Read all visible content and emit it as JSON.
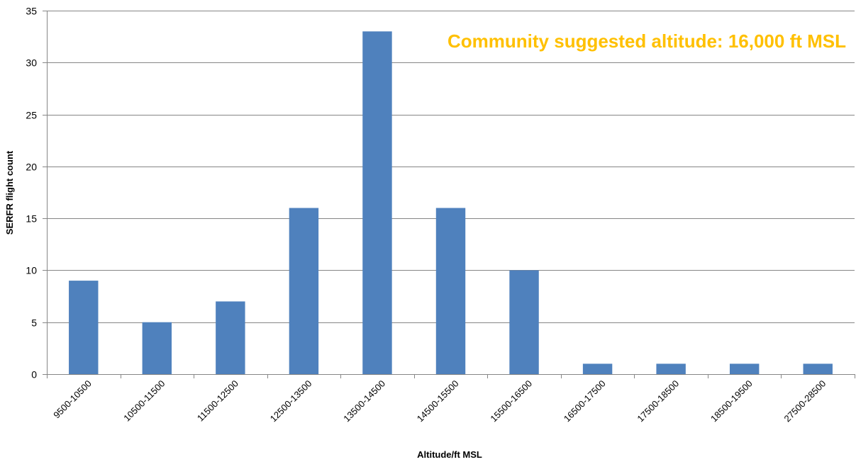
{
  "chart_data": {
    "type": "bar",
    "title": "",
    "xlabel": "Altitude/ft MSL",
    "ylabel": "SERFR flight count",
    "ylim": [
      0,
      35
    ],
    "yticks": [
      0,
      5,
      10,
      15,
      20,
      25,
      30,
      35
    ],
    "grid": true,
    "legend": "none",
    "categories": [
      "9500-10500",
      "10500-11500",
      "11500-12500",
      "12500-13500",
      "13500-14500",
      "14500-15500",
      "15500-16500",
      "16500-17500",
      "17500-18500",
      "18500-19500",
      "27500-28500"
    ],
    "values": [
      9,
      5,
      7,
      16,
      33,
      16,
      10,
      1,
      1,
      1,
      1
    ],
    "bar_color": "#4F81BD",
    "annotation": {
      "text": "Community suggested altitude: 16,000 ft MSL",
      "color": "#FFC000"
    }
  }
}
